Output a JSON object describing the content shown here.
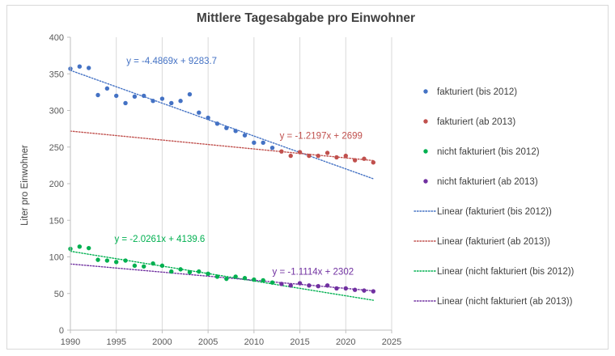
{
  "chart_data": {
    "type": "scatter",
    "title": "Mittlere Tagesabgabe pro Einwohner",
    "xlabel": "",
    "ylabel": "Liter pro Einwohner",
    "xlim": [
      1990,
      2025
    ],
    "ylim": [
      0,
      400
    ],
    "x_ticks": [
      1990,
      1995,
      2000,
      2005,
      2010,
      2015,
      2020,
      2025
    ],
    "y_ticks": [
      0,
      50,
      100,
      150,
      200,
      250,
      300,
      350,
      400
    ],
    "grid": "vertical",
    "legend_position": "right",
    "series": [
      {
        "name": "fakturiert (bis 2012)",
        "color": "#4472C4",
        "x": [
          1990,
          1991,
          1992,
          1993,
          1994,
          1995,
          1996,
          1997,
          1998,
          1999,
          2000,
          2001,
          2002,
          2003,
          2004,
          2005,
          2006,
          2007,
          2008,
          2009,
          2010,
          2011,
          2012
        ],
        "y": [
          357,
          360,
          358,
          321,
          330,
          320,
          310,
          319,
          320,
          313,
          316,
          310,
          313,
          322,
          297,
          290,
          282,
          276,
          272,
          266,
          256,
          256,
          249
        ]
      },
      {
        "name": "fakturiert (ab 2013)",
        "color": "#C0504D",
        "x": [
          2013,
          2014,
          2015,
          2016,
          2017,
          2018,
          2019,
          2020,
          2021,
          2022,
          2023
        ],
        "y": [
          244,
          238,
          243,
          238,
          238,
          242,
          236,
          238,
          232,
          234,
          229
        ]
      },
      {
        "name": "nicht fakturiert (bis 2012)",
        "color": "#00B050",
        "x": [
          1990,
          1991,
          1992,
          1993,
          1994,
          1995,
          1996,
          1997,
          1998,
          1999,
          2000,
          2001,
          2002,
          2003,
          2004,
          2005,
          2006,
          2007,
          2008,
          2009,
          2010,
          2011,
          2012
        ],
        "y": [
          111,
          114,
          112,
          96,
          95,
          93,
          95,
          88,
          87,
          91,
          88,
          80,
          83,
          79,
          80,
          77,
          73,
          70,
          73,
          71,
          69,
          68,
          65
        ]
      },
      {
        "name": "nicht fakturiert (ab 2013)",
        "color": "#7030A0",
        "x": [
          2013,
          2014,
          2015,
          2016,
          2017,
          2018,
          2019,
          2020,
          2021,
          2022,
          2023
        ],
        "y": [
          63,
          61,
          64,
          61,
          60,
          61,
          57,
          57,
          55,
          54,
          53
        ]
      }
    ],
    "trendlines": [
      {
        "name": "Linear (fakturiert (bis 2012))",
        "color": "#4472C4",
        "slope": -4.4869,
        "intercept": 9283.7,
        "x_range": [
          1990,
          2023
        ],
        "equation": "y = -4.4869x + 9283.7"
      },
      {
        "name": "Linear (fakturiert (ab 2013))",
        "color": "#C0504D",
        "slope": -1.2197,
        "intercept": 2699,
        "x_range": [
          1990,
          2023
        ],
        "equation": "y = -1.2197x + 2699"
      },
      {
        "name": "Linear (nicht fakturiert (bis 2012))",
        "color": "#00B050",
        "slope": -2.0261,
        "intercept": 4139.6,
        "x_range": [
          1990,
          2023
        ],
        "equation": "y = -2.0261x + 4139.6"
      },
      {
        "name": "Linear (nicht fakturiert (ab 2013))",
        "color": "#7030A0",
        "slope": -1.1114,
        "intercept": 2302,
        "x_range": [
          1990,
          2023
        ],
        "equation": "y = -1.1114x + 2302"
      }
    ]
  }
}
